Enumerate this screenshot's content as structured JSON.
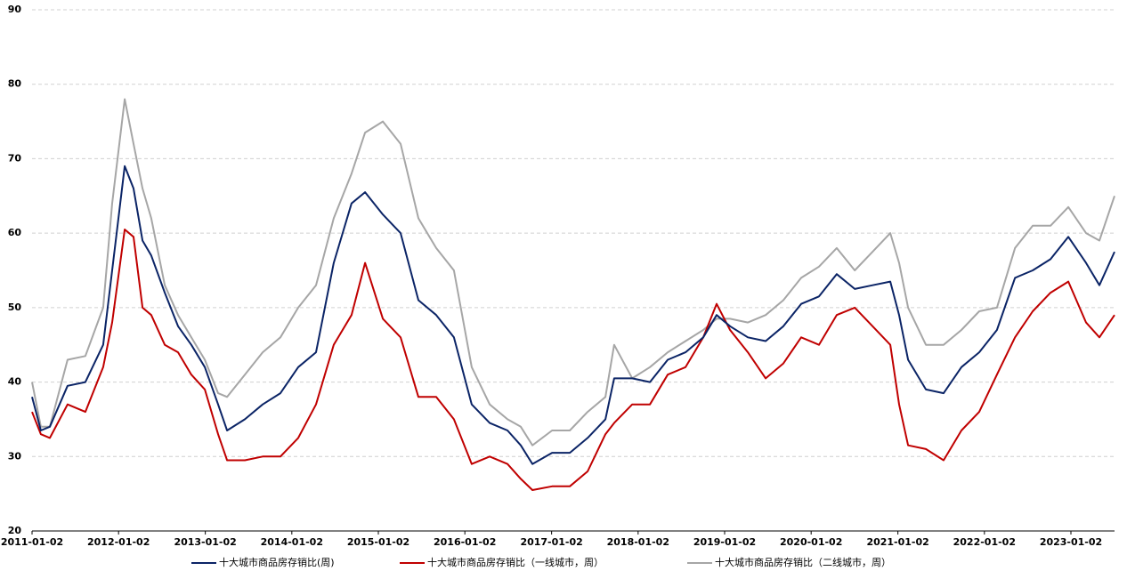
{
  "chart_data": {
    "type": "line",
    "x": [
      "2011-01-02",
      "2011-02-08",
      "2011-03-18",
      "2011-06-01",
      "2011-08-15",
      "2011-10-29",
      "2011-12-06",
      "2012-01-28",
      "2012-03-05",
      "2012-04-12",
      "2012-05-19",
      "2012-07-15",
      "2012-09-09",
      "2012-11-04",
      "2012-12-31",
      "2013-02-25",
      "2013-04-04",
      "2013-06-18",
      "2013-09-01",
      "2013-11-15",
      "2014-01-29",
      "2014-04-14",
      "2014-06-28",
      "2014-09-11",
      "2014-11-07",
      "2015-01-21",
      "2015-04-06",
      "2015-06-20",
      "2015-09-03",
      "2015-11-17",
      "2016-01-31",
      "2016-04-16",
      "2016-06-30",
      "2016-08-25",
      "2016-10-13",
      "2017-01-04",
      "2017-03-20",
      "2017-06-03",
      "2017-08-17",
      "2017-09-23",
      "2017-12-08",
      "2018-02-21",
      "2018-05-07",
      "2018-07-21",
      "2018-10-04",
      "2018-11-29",
      "2019-01-25",
      "2019-04-10",
      "2019-06-24",
      "2019-09-07",
      "2019-11-21",
      "2020-02-04",
      "2020-04-19",
      "2020-07-04",
      "2020-09-17",
      "2020-12-01",
      "2021-01-07",
      "2021-02-14",
      "2021-04-30",
      "2021-07-14",
      "2021-09-27",
      "2021-12-11",
      "2022-02-24",
      "2022-05-11",
      "2022-07-25",
      "2022-10-08",
      "2022-12-22",
      "2023-03-07",
      "2023-05-02",
      "2023-07-05"
    ],
    "series": [
      {
        "name": "十大城市商品房存销比(周)",
        "color": "#0b2466",
        "values": [
          38,
          33.5,
          34,
          39.5,
          40,
          45,
          55,
          69,
          66,
          59,
          57,
          52,
          47.5,
          45,
          42,
          37,
          33.5,
          35,
          37,
          38.5,
          42,
          44,
          56,
          64,
          65.5,
          62.5,
          60,
          51,
          49,
          46,
          37,
          34.5,
          33.5,
          31.5,
          29,
          30.5,
          30.5,
          32.5,
          35,
          40.5,
          40.5,
          40,
          43,
          44,
          46,
          49,
          47.5,
          46,
          45.5,
          47.5,
          50.5,
          51.5,
          54.5,
          52.5,
          53,
          53.5,
          49,
          43,
          39,
          38.5,
          42,
          44,
          47,
          54,
          55,
          56.5,
          59.5,
          56,
          53,
          57.5
        ]
      },
      {
        "name": "十大城市商品房存销比（一线城市，周）",
        "color": "#c00000",
        "values": [
          36,
          33,
          32.5,
          37,
          36,
          42,
          48,
          60.5,
          59.5,
          50,
          49,
          45,
          44,
          41,
          39,
          33,
          29.5,
          29.5,
          30,
          30,
          32.5,
          37,
          45,
          49,
          56,
          48.5,
          46,
          38,
          38,
          35,
          29,
          30,
          29,
          27,
          25.5,
          26,
          26,
          28,
          33,
          34.5,
          37,
          37,
          41,
          42,
          46,
          50.5,
          47,
          44,
          40.5,
          42.5,
          46,
          45,
          49,
          50,
          47.5,
          45,
          37,
          31.5,
          31,
          29.5,
          33.5,
          36,
          41,
          46,
          49.5,
          52,
          53.5,
          48,
          46,
          49
        ]
      },
      {
        "name": "十大城市商品房存销比（二线城市，周）",
        "color": "#a6a6a6",
        "values": [
          40,
          34,
          34,
          43,
          43.5,
          50,
          64,
          78,
          72,
          66,
          62,
          53,
          49,
          46,
          43,
          38.5,
          38,
          41,
          44,
          46,
          50,
          53,
          62,
          68,
          73.5,
          75,
          72,
          62,
          58,
          55,
          42,
          37,
          35,
          34,
          31.5,
          33.5,
          33.5,
          36,
          38,
          45,
          40.5,
          42,
          44,
          45.5,
          47,
          48.5,
          48.5,
          48,
          49,
          51,
          54,
          55.5,
          58,
          55,
          57.5,
          60,
          56,
          50,
          45,
          45,
          47,
          49.5,
          50,
          58,
          61,
          61,
          63.5,
          60,
          59,
          65
        ]
      }
    ],
    "xlim": [
      "2011-01-02",
      "2023-07-05"
    ],
    "xticks": [
      "2011-01-02",
      "2012-01-02",
      "2013-01-02",
      "2014-01-02",
      "2015-01-02",
      "2016-01-02",
      "2017-01-02",
      "2018-01-02",
      "2019-01-02",
      "2020-01-02",
      "2021-01-02",
      "2022-01-02",
      "2023-01-02"
    ],
    "ylim": [
      20,
      90
    ],
    "yticks": [
      20,
      30,
      40,
      50,
      60,
      70,
      80,
      90
    ],
    "grid": true,
    "legend": "bottom"
  }
}
